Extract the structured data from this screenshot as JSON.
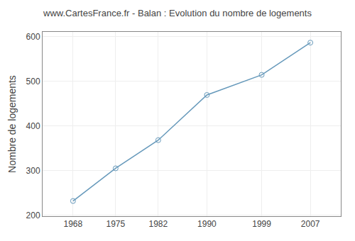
{
  "chart_data": {
    "type": "line",
    "title": "www.CartesFrance.fr - Balan : Evolution du nombre de logements",
    "ylabel": "Nombre de logements",
    "x": [
      1968,
      1975,
      1982,
      1990,
      1999,
      2007
    ],
    "values": [
      232,
      305,
      368,
      469,
      514,
      586
    ],
    "color": "#6699bb",
    "marker": "circle-open",
    "xlim": [
      1963,
      2012
    ],
    "ylim": [
      198,
      610
    ],
    "xticks": [
      1968,
      1975,
      1982,
      1990,
      1999,
      2007
    ],
    "yticks": [
      200,
      300,
      400,
      500,
      600
    ],
    "grid": true
  }
}
